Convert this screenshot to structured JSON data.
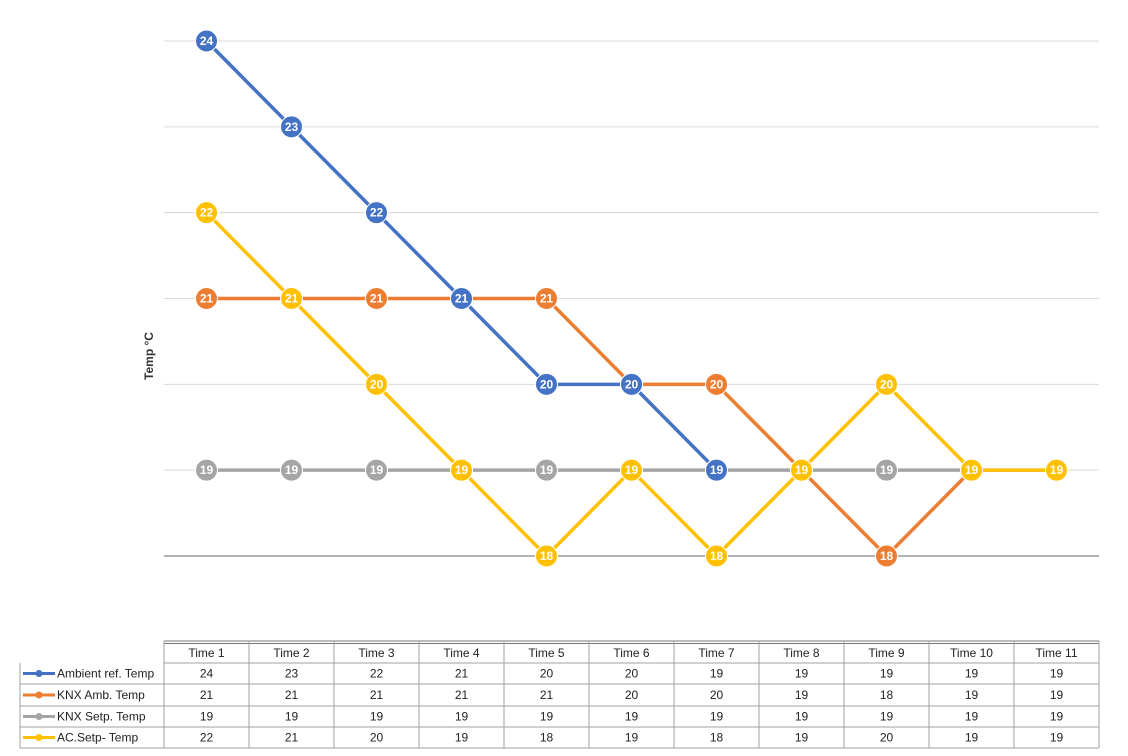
{
  "chart_data": {
    "type": "line",
    "categories": [
      "Time 1",
      "Time 2",
      "Time 3",
      "Time 4",
      "Time 5",
      "Time 6",
      "Time 7",
      "Time 8",
      "Time 9",
      "Time 10",
      "Time 11"
    ],
    "ylabel": "Temp °C",
    "ylim": [
      18,
      24
    ],
    "grid": true,
    "data_labels": true,
    "legend": "data table below chart",
    "series": [
      {
        "name": "Ambient ref. Temp",
        "color": "#4472C4",
        "values": [
          24,
          23,
          22,
          21,
          20,
          20,
          19,
          null,
          null,
          null,
          null
        ],
        "table_values": [
          24,
          23,
          22,
          21,
          20,
          20,
          19,
          19,
          19,
          19,
          19
        ]
      },
      {
        "name": "KNX Amb. Temp",
        "color": "#ED7D31",
        "values": [
          21,
          21,
          21,
          21,
          21,
          20,
          20,
          19,
          18,
          19,
          null
        ],
        "table_values": [
          21,
          21,
          21,
          21,
          21,
          20,
          20,
          19,
          18,
          19,
          19
        ]
      },
      {
        "name": "KNX Setp. Temp",
        "color": "#A5A5A5",
        "values": [
          19,
          19,
          19,
          19,
          19,
          19,
          19,
          19,
          19,
          19,
          19
        ],
        "table_values": [
          19,
          19,
          19,
          19,
          19,
          19,
          19,
          19,
          19,
          19,
          19
        ]
      },
      {
        "name": "AC.Setp- Temp",
        "color": "#FFC000",
        "values": [
          22,
          21,
          20,
          19,
          18,
          19,
          18,
          19,
          20,
          19,
          19
        ],
        "table_values": [
          22,
          21,
          20,
          19,
          18,
          19,
          18,
          19,
          20,
          19,
          19
        ]
      }
    ]
  }
}
